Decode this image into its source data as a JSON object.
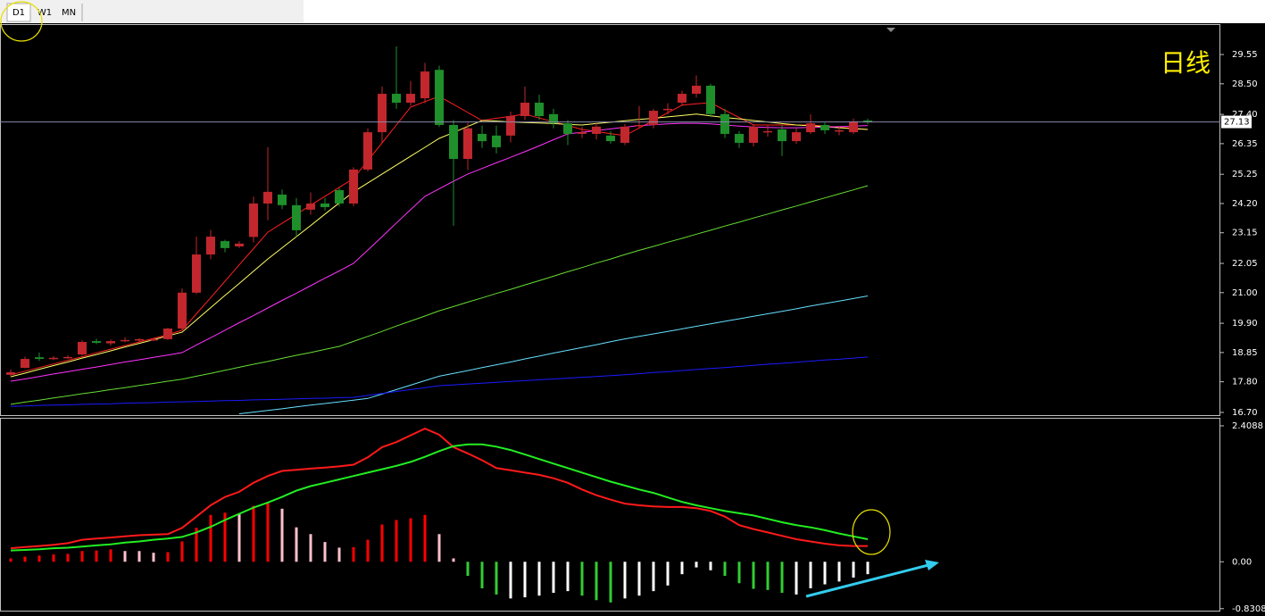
{
  "toolbar": {
    "tabs": [
      "D1",
      "W1",
      "MN"
    ]
  },
  "chart_data": [
    {
      "type": "candlestick",
      "annotation": "日线",
      "price_line": 27.13,
      "ylim": [
        16.57,
        30.61
      ],
      "yticks": [
        {
          "value": 16.7,
          "label": "16.70"
        },
        {
          "value": 17.8,
          "label": "17.80"
        },
        18.85,
        {
          "value": 19.9,
          "label": "19.90"
        },
        {
          "value": 21,
          "label": "21.00"
        },
        22.05,
        23.15,
        {
          "value": 24.2,
          "label": "24.20"
        },
        25.25,
        26.35,
        {
          "value": 27.4,
          "label": "27.40"
        },
        {
          "value": 28.5,
          "label": "28.50"
        },
        29.55
      ],
      "up_color": "#c1272d",
      "down_color": "#1e8f2a",
      "open": [
        18.05,
        18.3,
        18.68,
        18.62,
        18.66,
        18.78,
        19.26,
        19.18,
        19.26,
        19.28,
        19.3,
        19.33,
        19.71,
        21,
        22.37,
        22.85,
        22.66,
        23,
        24.2,
        24.52,
        24.14,
        23.98,
        24.2,
        24.68,
        24.2,
        25.42,
        26.76,
        28.14,
        27.82,
        27.98,
        29,
        27.02,
        25.8,
        26.7,
        26.64,
        26.64,
        27.34,
        27.82,
        27.41,
        27.08,
        26.7,
        26.7,
        26.64,
        26.38,
        26.98,
        27.02,
        27.58,
        27.82,
        28.14,
        28.43,
        27.41,
        26.7,
        26.38,
        26.76,
        26.86,
        26.44,
        26.76,
        27.02,
        26.8,
        26.76,
        27.18
      ],
      "high": [
        18.25,
        18.7,
        18.85,
        18.72,
        18.75,
        19.3,
        19.35,
        19.32,
        19.4,
        19.36,
        19.36,
        19.74,
        21.15,
        23.01,
        23.25,
        22.9,
        22.85,
        24.45,
        26.22,
        24.7,
        24.4,
        24.6,
        24.4,
        24.75,
        25.5,
        26.9,
        28.4,
        29.84,
        28.6,
        29.25,
        29.15,
        27.2,
        27.1,
        27,
        27,
        27.5,
        28.4,
        28.1,
        27.6,
        27.2,
        26.95,
        27.1,
        26.8,
        27.05,
        27.7,
        27.6,
        27.8,
        28.25,
        28.8,
        28.5,
        27.6,
        26.8,
        27.05,
        27,
        27,
        26.9,
        27.4,
        27.1,
        26.95,
        27.25,
        27.25
      ],
      "low": [
        17.98,
        18.28,
        18.55,
        18.58,
        18.62,
        18.74,
        19.15,
        19.1,
        19.22,
        19.24,
        19.26,
        19.3,
        19.68,
        20.95,
        22.2,
        22.45,
        22.6,
        22.8,
        23.6,
        24,
        23,
        23.8,
        23.95,
        24.1,
        24.1,
        25.35,
        26.4,
        27.6,
        27.7,
        27.8,
        26.95,
        23.4,
        25.4,
        26.2,
        26,
        26.4,
        27.2,
        27.2,
        26.9,
        26.3,
        26.55,
        26.5,
        26.35,
        26.3,
        26.9,
        26.9,
        27.4,
        27.7,
        28,
        27.3,
        26.55,
        26.2,
        26.25,
        26.6,
        25.9,
        26.35,
        26.7,
        26.7,
        26.65,
        26.7,
        27.05
      ],
      "close": [
        18.14,
        18.62,
        18.62,
        18.66,
        18.69,
        19.23,
        19.2,
        19.26,
        19.3,
        19.33,
        19.33,
        19.71,
        21,
        22.37,
        23.01,
        22.6,
        22.76,
        24.2,
        24.62,
        24.14,
        23.24,
        24.2,
        24.07,
        24.2,
        25.42,
        26.76,
        28.14,
        27.82,
        28.14,
        28.94,
        27.02,
        25.8,
        26.9,
        26.44,
        26.22,
        27.34,
        27.82,
        27.34,
        27.08,
        26.7,
        26.76,
        26.96,
        26.44,
        26.96,
        27.02,
        27.53,
        27.6,
        28.14,
        28.43,
        27.41,
        26.7,
        26.38,
        26.96,
        26.8,
        26.44,
        26.76,
        27.08,
        26.83,
        26.83,
        27.15,
        27.13
      ],
      "series": [
        {
          "color": "#ff2020",
          "values": [
            18.05,
            18.18,
            18.31,
            18.44,
            18.57,
            18.7,
            18.84,
            18.97,
            19.1,
            19.23,
            19.36,
            19.49,
            19.65,
            20.24,
            20.82,
            21.41,
            22,
            22.58,
            23.17,
            23.49,
            23.81,
            24.14,
            24.46,
            24.78,
            25.1,
            25.74,
            26.38,
            27.02,
            27.66,
            27.86,
            28.05,
            27.76,
            27.47,
            27.18,
            27.26,
            27.33,
            27.41,
            27.27,
            27.14,
            27,
            26.86,
            26.79,
            26.71,
            26.64,
            26.91,
            27.18,
            27.46,
            27.73,
            27.78,
            27.82,
            27.55,
            27.29,
            27.02,
            27.02,
            27.02,
            27.02,
            27.02,
            26.98,
            26.94,
            26.9,
            26.86
          ]
        },
        {
          "color": "#ffff66",
          "values": [
            17.98,
            18.11,
            18.25,
            18.38,
            18.51,
            18.65,
            18.78,
            18.91,
            19.05,
            19.18,
            19.31,
            19.45,
            19.58,
            20.02,
            20.46,
            20.9,
            21.33,
            21.77,
            22.21,
            22.61,
            23.01,
            23.41,
            23.82,
            24.22,
            24.62,
            24.94,
            25.26,
            25.58,
            25.9,
            26.22,
            26.54,
            26.75,
            26.97,
            27.18,
            27.16,
            27.13,
            27.11,
            27.09,
            27.07,
            27.04,
            27.02,
            27.07,
            27.12,
            27.17,
            27.22,
            27.26,
            27.31,
            27.36,
            27.41,
            27.35,
            27.29,
            27.24,
            27.18,
            27.13,
            27.07,
            27.02,
            26.99,
            26.96,
            26.92,
            26.89,
            26.86
          ]
        },
        {
          "color": "#ff33ff",
          "values": [
            17.82,
            17.9,
            17.99,
            18.08,
            18.16,
            18.25,
            18.33,
            18.42,
            18.51,
            18.59,
            18.68,
            18.76,
            18.85,
            19.12,
            19.38,
            19.65,
            19.92,
            20.18,
            20.45,
            20.72,
            20.98,
            21.25,
            21.52,
            21.78,
            22.05,
            22.53,
            23.01,
            23.5,
            23.98,
            24.46,
            24.73,
            25,
            25.26,
            25.46,
            25.66,
            25.86,
            26.06,
            26.27,
            26.49,
            26.7,
            26.76,
            26.82,
            26.88,
            26.94,
            27,
            27.03,
            27.06,
            27.08,
            27.08,
            27.06,
            27.02,
            26.98,
            26.95,
            26.93,
            26.92,
            26.92,
            26.93,
            26.94,
            26.96,
            26.98,
            27
          ]
        },
        {
          "color": "#66dd33",
          "values": [
            16.99,
            17.07,
            17.14,
            17.22,
            17.29,
            17.37,
            17.44,
            17.52,
            17.59,
            17.67,
            17.74,
            17.82,
            17.89,
            18,
            18.1,
            18.21,
            18.32,
            18.43,
            18.53,
            18.64,
            18.75,
            18.85,
            18.96,
            19.07,
            19.25,
            19.43,
            19.61,
            19.8,
            19.98,
            20.16,
            20.35,
            20.5,
            20.66,
            20.81,
            20.97,
            21.12,
            21.28,
            21.43,
            21.59,
            21.75,
            21.9,
            22.06,
            22.21,
            22.37,
            22.52,
            22.66,
            22.81,
            22.95,
            23.1,
            23.24,
            23.39,
            23.53,
            23.68,
            23.82,
            23.97,
            24.11,
            24.26,
            24.4,
            24.55,
            24.69,
            24.84
          ]
        },
        {
          "color": "#66e0ff",
          "values": [
            null,
            null,
            null,
            null,
            null,
            null,
            null,
            null,
            null,
            null,
            null,
            null,
            null,
            null,
            null,
            null,
            16.65,
            16.71,
            16.77,
            16.83,
            16.9,
            16.96,
            17.02,
            17.08,
            17.14,
            17.2,
            17.36,
            17.52,
            17.68,
            17.84,
            18,
            18.1,
            18.2,
            18.31,
            18.41,
            18.51,
            18.62,
            18.72,
            18.83,
            18.93,
            19.03,
            19.13,
            19.24,
            19.34,
            19.43,
            19.52,
            19.61,
            19.7,
            19.79,
            19.88,
            19.97,
            20.06,
            20.15,
            20.24,
            20.33,
            20.42,
            20.52,
            20.61,
            20.7,
            20.79,
            20.88
          ]
        },
        {
          "color": "#1a1aff",
          "values": [
            16.92,
            16.93,
            16.95,
            16.96,
            16.97,
            16.99,
            17,
            17.01,
            17.03,
            17.04,
            17.05,
            17.07,
            17.08,
            17.09,
            17.11,
            17.12,
            17.13,
            17.15,
            17.16,
            17.17,
            17.19,
            17.2,
            17.21,
            17.23,
            17.24,
            17.31,
            17.38,
            17.45,
            17.52,
            17.59,
            17.66,
            17.69,
            17.72,
            17.75,
            17.78,
            17.81,
            17.84,
            17.87,
            17.9,
            17.93,
            17.96,
            17.99,
            18.02,
            18.05,
            18.09,
            18.13,
            18.16,
            18.2,
            18.24,
            18.28,
            18.31,
            18.35,
            18.39,
            18.43,
            18.46,
            18.5,
            18.54,
            18.58,
            18.61,
            18.65,
            18.69
          ]
        }
      ]
    },
    {
      "type": "macd",
      "ylim": [
        -0.866,
        2.535
      ],
      "yticks": [
        -0.8308,
        {
          "value": 0,
          "label": "0.00"
        },
        2.4088
      ],
      "histogram": {
        "values": [
          0.06,
          0.09,
          0.11,
          0.13,
          0.14,
          0.19,
          0.2,
          0.22,
          0.19,
          0.19,
          0.16,
          0.17,
          0.36,
          0.6,
          0.83,
          0.87,
          0.85,
          0.99,
          1.06,
          0.94,
          0.61,
          0.49,
          0.35,
          0.25,
          0.26,
          0.39,
          0.66,
          0.74,
          0.77,
          0.83,
          0.49,
          0.06,
          -0.25,
          -0.47,
          -0.58,
          -0.65,
          -0.63,
          -0.6,
          -0.55,
          -0.52,
          -0.6,
          -0.68,
          -0.72,
          -0.65,
          -0.6,
          -0.52,
          -0.42,
          -0.22,
          -0.1,
          -0.15,
          -0.25,
          -0.38,
          -0.48,
          -0.5,
          -0.55,
          -0.58,
          -0.47,
          -0.4,
          -0.35,
          -0.28,
          -0.22
        ],
        "colors": [
          "#ff0000",
          "#ff0000",
          "#ff0000",
          "#ff0000",
          "#ff0000",
          "#ff0000",
          "#ff0000",
          "#ff0000",
          "#ffc0cb",
          "#ffc0cb",
          "#ffc0cb",
          "#ff0000",
          "#ff0000",
          "#ff0000",
          "#ff0000",
          "#ff0000",
          "#ffc0cb",
          "#ff0000",
          "#ff0000",
          "#ffc0cb",
          "#ffc0cb",
          "#ffc0cb",
          "#ffc0cb",
          "#ffc0cb",
          "#ff0000",
          "#ff0000",
          "#ff0000",
          "#ff0000",
          "#ff0000",
          "#ff0000",
          "#ffc0cb",
          "#ffc0cb",
          "#32cd32",
          "#32cd32",
          "#32cd32",
          "#ffffff",
          "#ffffff",
          "#ffffff",
          "#ffffff",
          "#ffffff",
          "#32cd32",
          "#32cd32",
          "#32cd32",
          "#ffffff",
          "#ffffff",
          "#ffffff",
          "#ffffff",
          "#ffffff",
          "#ffffff",
          "#ffffff",
          "#32cd32",
          "#32cd32",
          "#32cd32",
          "#32cd32",
          "#32cd32",
          "#ffffff",
          "#ffffff",
          "#ffffff",
          "#ffffff",
          "#ffffff",
          "#ffffff"
        ]
      },
      "series": [
        {
          "color": "#ff1a1a",
          "values": [
            0.24,
            0.26,
            0.28,
            0.3,
            0.33,
            0.39,
            0.41,
            0.43,
            0.45,
            0.47,
            0.48,
            0.49,
            0.6,
            0.8,
            1,
            1.15,
            1.24,
            1.4,
            1.52,
            1.61,
            1.63,
            1.65,
            1.67,
            1.69,
            1.72,
            1.85,
            2.03,
            2.12,
            2.24,
            2.36,
            2.25,
            2.03,
            1.92,
            1.8,
            1.66,
            1.62,
            1.58,
            1.54,
            1.48,
            1.4,
            1.28,
            1.18,
            1.1,
            1.03,
            1,
            0.98,
            0.97,
            0.97,
            0.95,
            0.9,
            0.8,
            0.65,
            0.58,
            0.52,
            0.46,
            0.4,
            0.36,
            0.32,
            0.29,
            0.28,
            0.28
          ]
        },
        {
          "color": "#22ee22",
          "values": [
            0.2,
            0.21,
            0.22,
            0.24,
            0.25,
            0.27,
            0.29,
            0.31,
            0.34,
            0.36,
            0.39,
            0.41,
            0.44,
            0.52,
            0.62,
            0.74,
            0.85,
            0.96,
            1.05,
            1.15,
            1.26,
            1.34,
            1.4,
            1.46,
            1.52,
            1.58,
            1.64,
            1.7,
            1.77,
            1.86,
            1.96,
            2.05,
            2.08,
            2.08,
            2.04,
            1.98,
            1.9,
            1.82,
            1.74,
            1.66,
            1.58,
            1.5,
            1.42,
            1.35,
            1.28,
            1.22,
            1.14,
            1.06,
            1,
            0.95,
            0.9,
            0.86,
            0.82,
            0.76,
            0.7,
            0.65,
            0.61,
            0.56,
            0.5,
            0.45,
            0.4
          ]
        }
      ]
    }
  ]
}
